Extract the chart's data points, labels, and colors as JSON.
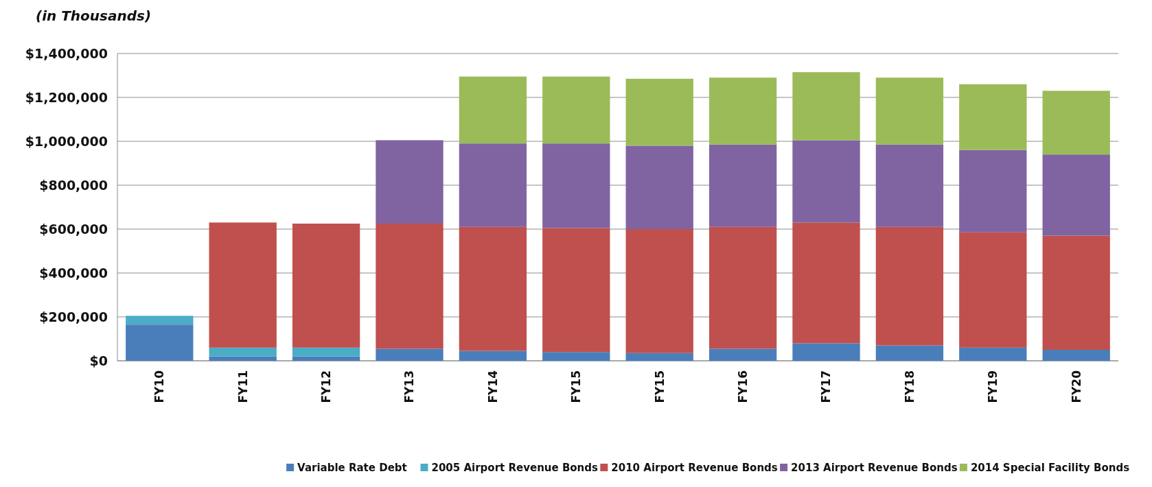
{
  "chart_data": {
    "type": "bar",
    "title": "(in Thousands)",
    "stacked": true,
    "categories": [
      "FY10",
      "FY11",
      "FY12",
      "FY13",
      "FY14",
      "FY15",
      "FY15",
      "FY16",
      "FY17",
      "FY18",
      "FY19",
      "FY20"
    ],
    "series": [
      {
        "name": "Variable Rate Debt",
        "color": "#4a7ebb",
        "values": [
          165000,
          20000,
          20000,
          55000,
          45000,
          40000,
          35000,
          55000,
          80000,
          70000,
          60000,
          50000
        ]
      },
      {
        "name": "2005 Airport Revenue Bonds",
        "color": "#4bacc6",
        "values": [
          40000,
          40000,
          40000,
          null,
          null,
          null,
          null,
          null,
          null,
          null,
          null,
          null
        ]
      },
      {
        "name": "2010 Airport Revenue Bonds",
        "color": "#c0504d",
        "values": [
          null,
          570000,
          565000,
          570000,
          565000,
          565000,
          565000,
          555000,
          550000,
          540000,
          525000,
          520000
        ]
      },
      {
        "name": "2013 Airport Revenue Bonds",
        "color": "#8064a2",
        "values": [
          null,
          null,
          null,
          380000,
          380000,
          385000,
          380000,
          375000,
          375000,
          375000,
          375000,
          370000
        ]
      },
      {
        "name": "2014 Special Facility Bonds",
        "color": "#9bbb59",
        "values": [
          null,
          null,
          null,
          null,
          305000,
          305000,
          305000,
          305000,
          310000,
          305000,
          300000,
          290000
        ]
      }
    ],
    "ylim": [
      0,
      1400000
    ],
    "yticks": [
      {
        "value": 0,
        "label": "$0"
      },
      {
        "value": 200000,
        "label": "$200,000"
      },
      {
        "value": 400000,
        "label": "$400,000"
      },
      {
        "value": 600000,
        "label": "$600,000"
      },
      {
        "value": 800000,
        "label": "$800,000"
      },
      {
        "value": 1000000,
        "label": "$1,000,000"
      },
      {
        "value": 1200000,
        "label": "$1,200,000"
      },
      {
        "value": 1400000,
        "label": "$1,400,000"
      }
    ],
    "grid": "y",
    "legend": "bottom right"
  }
}
